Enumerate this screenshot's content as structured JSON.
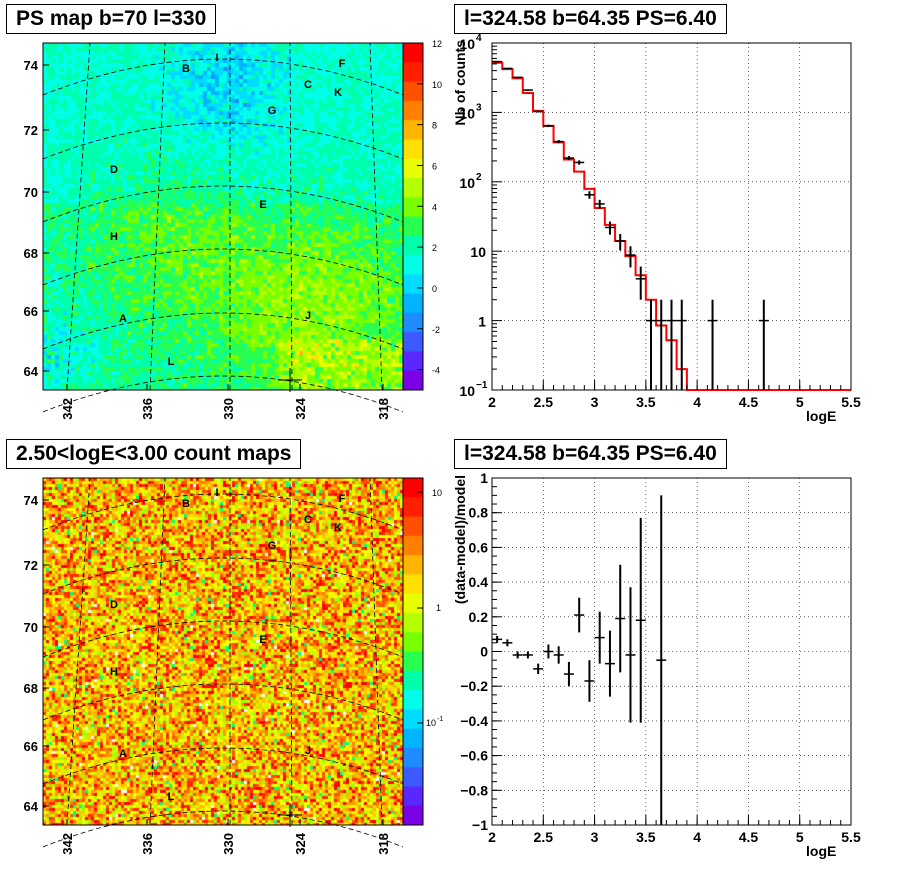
{
  "panels": {
    "ps_map": {
      "title": "PS map b=70 l=330",
      "colorbar_ticks": [
        "12",
        "10",
        "8",
        "6",
        "4",
        "2",
        "0",
        "-2",
        "-4"
      ],
      "lat_ticks": [
        "74",
        "72",
        "70",
        "68",
        "66",
        "64"
      ],
      "lon_ticks": [
        "342",
        "336",
        "330",
        "324",
        "318"
      ],
      "sources": [
        "A",
        "B",
        "C",
        "D",
        "E",
        "F",
        "G",
        "H",
        "I",
        "J",
        "K",
        "L"
      ]
    },
    "spectrum": {
      "title": "l=324.58 b=64.35 PS=6.40",
      "ylabel": "Nb of counts",
      "xlabel": "logE",
      "x_ticks": [
        "2",
        "2.5",
        "3",
        "3.5",
        "4",
        "4.5",
        "5",
        "5.5"
      ],
      "y_ticks": [
        {
          "base": "10",
          "exp": "4"
        },
        {
          "base": "10",
          "exp": "3"
        },
        {
          "base": "10",
          "exp": "2"
        },
        {
          "base": "10",
          "exp": ""
        },
        {
          "base": "1",
          "exp": ""
        },
        {
          "base": "10",
          "exp": "−1"
        }
      ]
    },
    "count_map": {
      "title": "2.50<logE<3.00 count maps",
      "colorbar_ticks": [
        "10",
        "1"
      ],
      "colorbar_tick_sub": {
        "base": "10",
        "exp": "-1"
      },
      "lat_ticks": [
        "74",
        "72",
        "70",
        "68",
        "66",
        "64"
      ],
      "lon_ticks": [
        "342",
        "336",
        "330",
        "324",
        "318"
      ],
      "sources": [
        "A",
        "B",
        "C",
        "D",
        "E",
        "F",
        "G",
        "H",
        "I",
        "J",
        "K",
        "L"
      ]
    },
    "residual": {
      "title": "l=324.58 b=64.35 PS=6.40",
      "ylabel": "(data-model)/model",
      "xlabel": "logE",
      "x_ticks": [
        "2",
        "2.5",
        "3",
        "3.5",
        "4",
        "4.5",
        "5",
        "5.5"
      ],
      "y_ticks": [
        "1",
        "0.8",
        "0.6",
        "0.4",
        "0.2",
        "0",
        "−0.2",
        "−0.4",
        "−0.6",
        "−0.8",
        "−1"
      ]
    }
  },
  "chart_data": [
    {
      "type": "heatmap",
      "title": "PS map b=70 l=330",
      "xlabel": "",
      "ylabel": "",
      "xlim": [
        344,
        317
      ],
      "ylim": [
        63.5,
        75
      ],
      "zlim": [
        -5,
        12
      ],
      "colorbar_label": "",
      "sources": [
        {
          "name": "A",
          "l": 339.2,
          "b": 66.0
        },
        {
          "name": "B",
          "l": 334.9,
          "b": 73.8
        },
        {
          "name": "C",
          "l": 321.7,
          "b": 73.3
        },
        {
          "name": "D",
          "l": 339.6,
          "b": 70.5
        },
        {
          "name": "E",
          "l": 327.2,
          "b": 69.8
        },
        {
          "name": "F",
          "l": 319.3,
          "b": 74.0
        },
        {
          "name": "G",
          "l": 325.5,
          "b": 72.6
        },
        {
          "name": "H",
          "l": 339.4,
          "b": 68.5
        },
        {
          "name": "I",
          "l": 330.3,
          "b": 74.4
        },
        {
          "name": "J",
          "l": 323.2,
          "b": 66.2
        },
        {
          "name": "K",
          "l": 319.9,
          "b": 73.0
        },
        {
          "name": "L",
          "l": 335.7,
          "b": 64.1
        }
      ]
    },
    {
      "type": "line",
      "title": "l=324.58 b=64.35 PS=6.40",
      "xlabel": "logE",
      "ylabel": "Nb of counts",
      "xlim": [
        2,
        5.5
      ],
      "ylim": [
        0.1,
        10000
      ],
      "yscale": "log",
      "grid": true,
      "series": [
        {
          "name": "",
          "color": "#ff0000",
          "bin_edges": [
            2.0,
            2.1,
            2.2,
            2.3,
            2.4,
            2.5,
            2.6,
            2.7,
            2.8,
            2.9,
            3.0,
            3.1,
            3.2,
            3.3,
            3.4,
            3.5,
            3.6,
            3.7,
            3.8,
            3.9,
            4.0,
            4.1,
            4.2,
            4.3,
            4.4,
            4.5,
            4.6,
            4.7,
            4.8,
            4.9,
            5.0,
            5.1,
            5.2,
            5.3,
            5.4,
            5.5
          ],
          "values": [
            5200,
            4200,
            3100,
            1900,
            1050,
            640,
            370,
            210,
            140,
            79,
            42,
            24,
            14,
            8.5,
            4.5,
            2.0,
            0.85,
            0.52,
            0.2,
            0.1,
            0.1,
            0.1,
            0.1,
            0.1,
            0.1,
            0.1,
            0.1,
            0.1,
            0.1,
            0.1,
            0.1,
            0.1,
            0.1,
            0.1,
            0.1
          ]
        },
        {
          "name": "",
          "color": "#000000",
          "x": [
            2.05,
            2.15,
            2.25,
            2.35,
            2.45,
            2.55,
            2.65,
            2.75,
            2.85,
            2.95,
            3.05,
            3.15,
            3.25,
            3.35,
            3.45,
            3.55,
            3.65,
            3.75,
            3.85,
            4.15,
            4.65
          ],
          "y": [
            5400,
            4300,
            3200,
            2100,
            1030,
            640,
            380,
            220,
            190,
            65,
            48,
            22,
            14,
            8.8,
            4,
            1.0,
            1,
            1,
            1,
            1,
            1
          ]
        }
      ]
    },
    {
      "type": "heatmap",
      "title": "2.50<logE<3.00 count maps",
      "xlabel": "",
      "ylabel": "",
      "xlim": [
        344,
        317
      ],
      "ylim": [
        63.5,
        75
      ],
      "zscale": "log",
      "zlim": [
        0.05,
        15
      ]
    },
    {
      "type": "scatter",
      "title": "l=324.58 b=64.35 PS=6.40",
      "xlabel": "logE",
      "ylabel": "(data-model)/model",
      "xlim": [
        2,
        5.5
      ],
      "ylim": [
        -1,
        1
      ],
      "grid": true,
      "series": [
        {
          "name": "",
          "x": [
            2.05,
            2.15,
            2.25,
            2.35,
            2.45,
            2.55,
            2.65,
            2.75,
            2.85,
            2.95,
            3.05,
            3.15,
            3.25,
            3.35,
            3.45,
            3.65
          ],
          "y": [
            0.07,
            0.05,
            -0.02,
            -0.02,
            -0.1,
            0.0,
            -0.02,
            -0.13,
            0.21,
            -0.17,
            0.08,
            -0.07,
            0.19,
            -0.02,
            0.18,
            -0.05
          ],
          "err": [
            0.02,
            0.02,
            0.02,
            0.02,
            0.03,
            0.04,
            0.05,
            0.07,
            0.1,
            0.12,
            0.15,
            0.19,
            0.31,
            0.39,
            0.59,
            0.95
          ]
        }
      ]
    }
  ]
}
